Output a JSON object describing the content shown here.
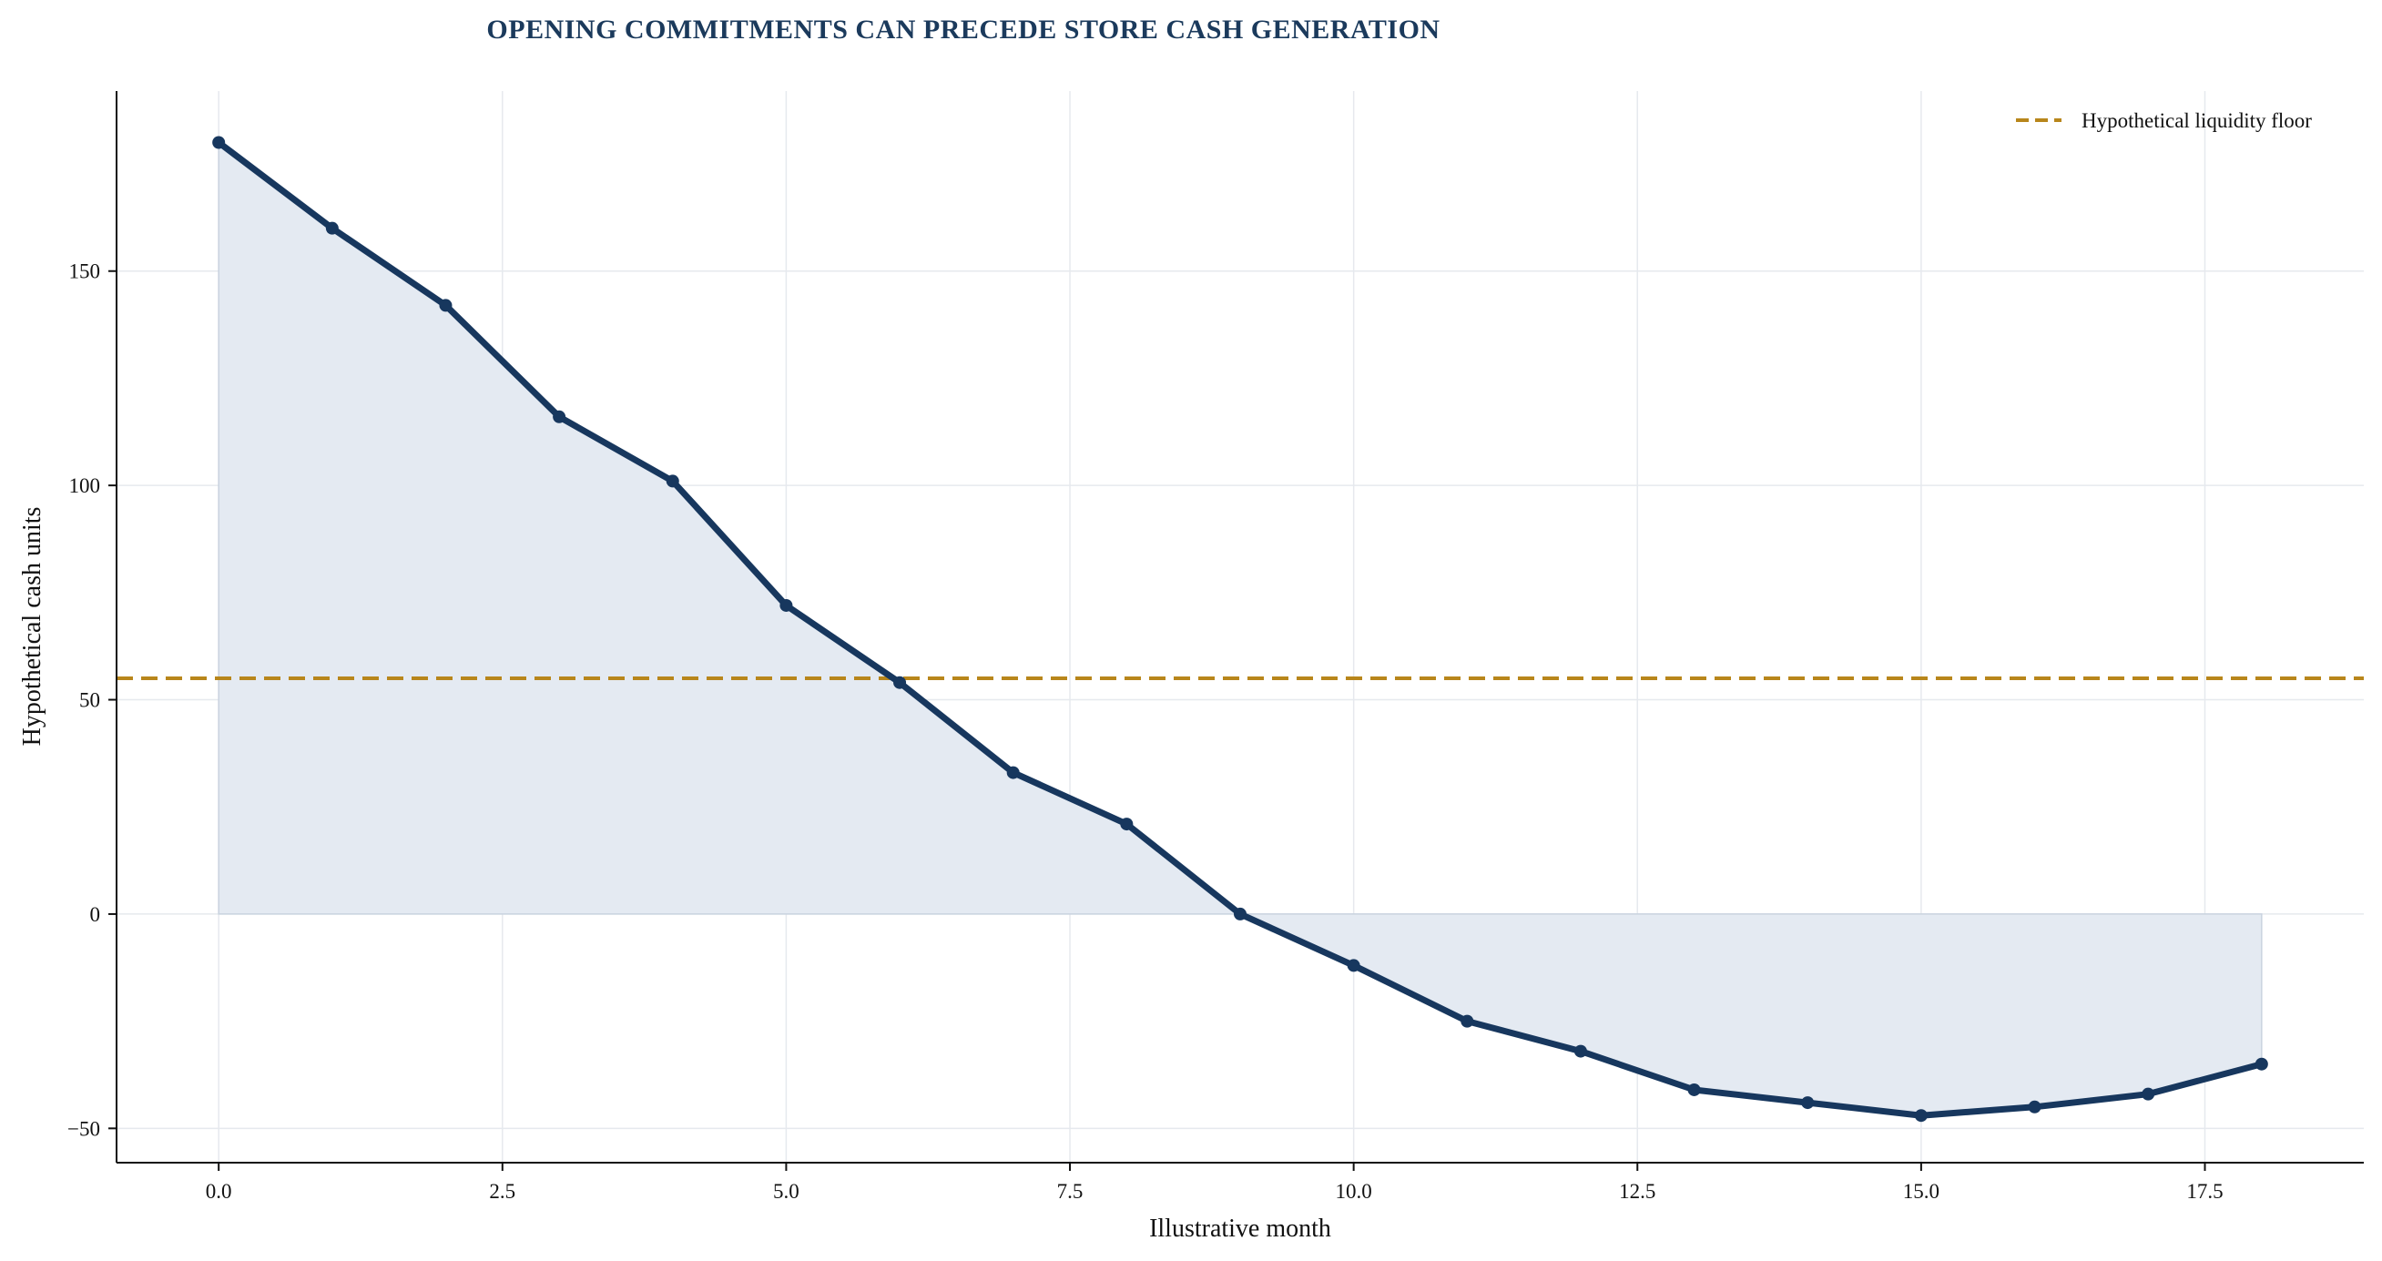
{
  "colors": {
    "line": "#17375e",
    "fill": "#e4eaf2",
    "fill_edge": "#c9d3df",
    "floor": "#b8861b",
    "grid": "#e6e9ee",
    "title": "#1b3a5c"
  },
  "chart_data": {
    "type": "area",
    "title": "OPENING COMMITMENTS CAN PRECEDE STORE CASH GENERATION",
    "xlabel": "Illustrative month",
    "ylabel": "Hypothetical cash units",
    "xlim": [
      -0.9,
      18.9
    ],
    "ylim": [
      -58,
      192
    ],
    "x_ticks": [
      0.0,
      2.5,
      5.0,
      7.5,
      10.0,
      12.5,
      15.0,
      17.5
    ],
    "x_tick_labels": [
      "0.0",
      "2.5",
      "5.0",
      "7.5",
      "10.0",
      "12.5",
      "15.0",
      "17.5"
    ],
    "y_ticks": [
      -50,
      0,
      50,
      100,
      150
    ],
    "y_tick_labels": [
      "−50",
      "0",
      "50",
      "100",
      "150"
    ],
    "grid": true,
    "legend_position": "top-right",
    "series": [
      {
        "x": [
          0,
          1,
          2,
          3,
          4,
          5,
          6,
          7,
          8,
          9,
          10,
          11,
          12,
          13,
          14,
          15,
          16,
          17,
          18
        ],
        "values": [
          180,
          160,
          142,
          116,
          101,
          72,
          54,
          33,
          21,
          0,
          -12,
          -25,
          -32,
          -41,
          -44,
          -47,
          -45,
          -42,
          -35
        ],
        "fill_to": 0,
        "markers": true
      }
    ],
    "reference_lines": [
      {
        "name": "Hypothetical liquidity floor",
        "y": 55,
        "style": "dashed"
      }
    ]
  }
}
